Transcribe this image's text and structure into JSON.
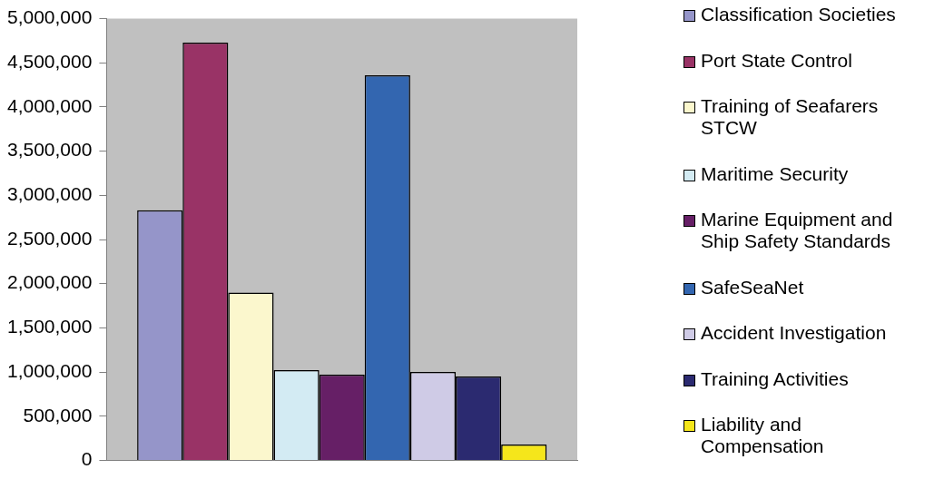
{
  "chart_data": {
    "type": "bar",
    "categories": [
      null
    ],
    "series": [
      {
        "name": "Classification Societies",
        "color": "#9595c9",
        "values": [
          2830000
        ]
      },
      {
        "name": "Port State Control",
        "color": "#993366",
        "values": [
          4730000
        ]
      },
      {
        "name": "Training of Seafarers STCW",
        "color": "#fbf7cd",
        "values": [
          1900000
        ]
      },
      {
        "name": "Maritime Security",
        "color": "#d3ebf3",
        "values": [
          1020000
        ]
      },
      {
        "name": "Marine Equipment and Ship Safety Standards",
        "color": "#661f66",
        "values": [
          970000
        ]
      },
      {
        "name": "SafeSeaNet",
        "color": "#3366b0",
        "values": [
          4360000
        ]
      },
      {
        "name": "Accident Investigation",
        "color": "#cfcbe6",
        "values": [
          1000000
        ]
      },
      {
        "name": "Training Activities",
        "color": "#2b2a70",
        "values": [
          950000
        ]
      },
      {
        "name": "Liability and Compensation",
        "color": "#f5e61b",
        "values": [
          180000
        ]
      }
    ],
    "ylim": [
      0,
      5000000
    ],
    "yticks": [
      0,
      {
        "value": 500000,
        "label": "500,000"
      },
      {
        "value": 1000000,
        "label": "1,000,000"
      },
      {
        "value": 1500000,
        "label": "1,500,000"
      },
      {
        "value": 2000000,
        "label": "2,000,000"
      },
      {
        "value": 2500000,
        "label": "2,500,000"
      },
      {
        "value": 3000000,
        "label": "3,000,000"
      },
      {
        "value": 3500000,
        "label": "3,500,000"
      },
      {
        "value": 4000000,
        "label": "4,000,000"
      },
      {
        "value": 4500000,
        "label": "4,500,000"
      },
      {
        "value": 5000000,
        "label": "5,000,000"
      }
    ],
    "grid": false,
    "legend": "right",
    "tick_labels": "y"
  }
}
